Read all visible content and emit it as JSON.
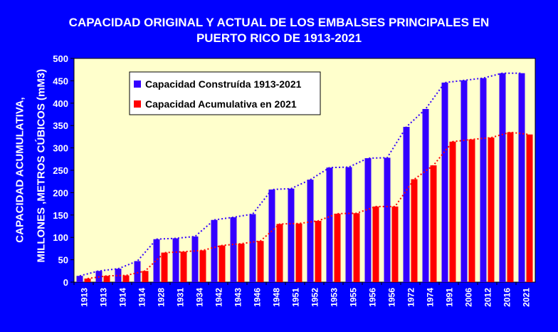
{
  "title_line1": "CAPACIDAD ORIGINAL Y ACTUAL DE LOS EMBALSES PRINCIPALES EN",
  "title_line2": "PUERTO RICO DE 1913-2021",
  "ylabel_line1": "CAPACIDAD ACUMULATIVA,",
  "ylabel_line2": "MILLONES ,METROS CÚBICOS (mM3)",
  "colors": {
    "background": "#0000ff",
    "plot_area": "#ffffcc",
    "series_constructed": "#3300ff",
    "series_current": "#ff0000",
    "text": "#ffffff"
  },
  "chart_data": {
    "type": "bar",
    "title": "CAPACIDAD ORIGINAL Y ACTUAL DE LOS EMBALSES PRINCIPALES EN PUERTO RICO DE 1913-2021",
    "ylabel": "CAPACIDAD ACUMULATIVA, MILLONES ,METROS CÚBICOS (mM3)",
    "xlabel": "",
    "ylim": [
      0,
      500
    ],
    "yticks": [
      0,
      50,
      100,
      150,
      200,
      250,
      300,
      350,
      400,
      450,
      500
    ],
    "categories": [
      "1913",
      "1913",
      "1914",
      "1914",
      "1928",
      "1931",
      "1934",
      "1942",
      "1943",
      "1946",
      "1948",
      "1951",
      "1952",
      "1953",
      "1955",
      "1956",
      "1956",
      "1972",
      "1974",
      "1991",
      "2006",
      "2012",
      "2016",
      "2021"
    ],
    "series": [
      {
        "name": "Capacidad Construída 1913-2021",
        "color": "#3300ff",
        "values": [
          14,
          25,
          30,
          47,
          96,
          98,
          102,
          139,
          145,
          152,
          207,
          209,
          229,
          256,
          257,
          277,
          278,
          347,
          387,
          446,
          451,
          456,
          467,
          467
        ]
      },
      {
        "name": "Capacidad Acumulativa en 2021",
        "color": "#ff0000",
        "values": [
          8,
          14,
          15,
          25,
          66,
          68,
          71,
          82,
          86,
          92,
          130,
          131,
          137,
          153,
          154,
          169,
          169,
          230,
          261,
          314,
          319,
          323,
          335,
          330
        ]
      }
    ],
    "trendlines": "dotted",
    "grid": false,
    "legend": "top-left"
  }
}
